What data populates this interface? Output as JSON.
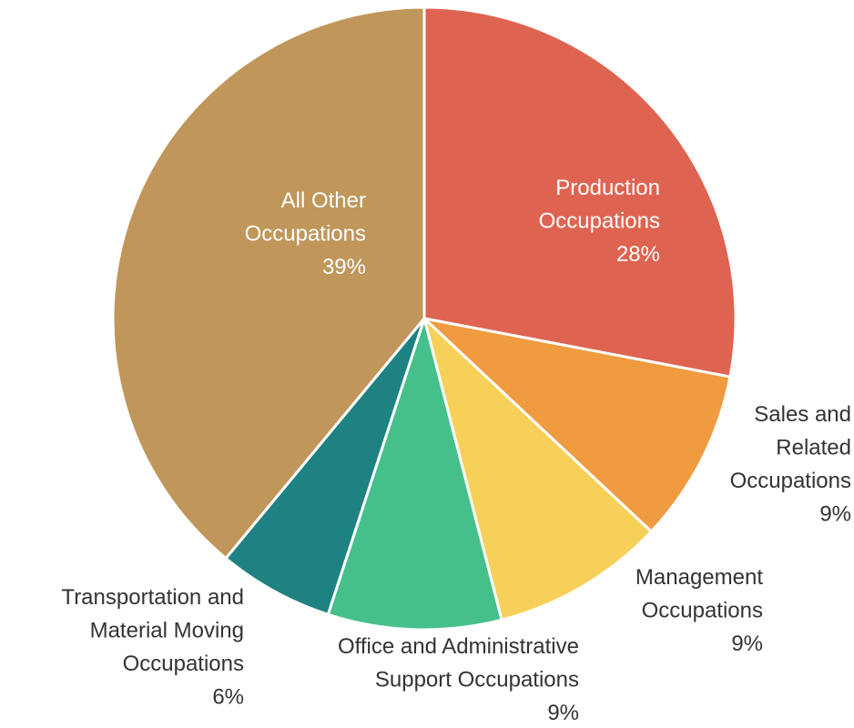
{
  "chart_data": {
    "type": "pie",
    "categories": [
      "Production Occupations",
      "Sales and Related Occupations",
      "Management Occupations",
      "Office and Administrative Support Occupations",
      "Transportation and Material Moving Occupations",
      "All Other Occupations"
    ],
    "values": [
      28,
      9,
      9,
      9,
      6,
      39
    ],
    "value_labels": [
      "28%",
      "9%",
      "9%",
      "9%",
      "6%",
      "39%"
    ],
    "colors": [
      "#de6451",
      "#f09b40",
      "#f7d05a",
      "#45c08a",
      "#1e8282",
      "#c0965a"
    ]
  }
}
